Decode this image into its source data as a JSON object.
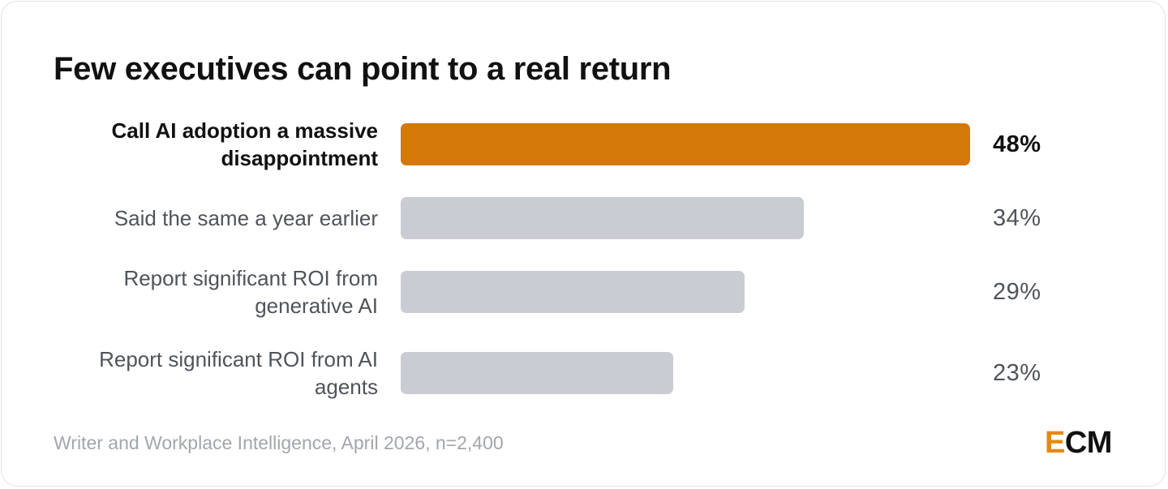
{
  "title": "Few executives can point to a real return",
  "source": "Writer and Workplace Intelligence, April 2026, n=2,400",
  "logo": {
    "first_letter": "E",
    "rest": "CM"
  },
  "colors": {
    "highlight": "#d4780a",
    "bar": "#c9ccd2",
    "logo_accent": "#e8880c"
  },
  "chart_data": {
    "type": "bar",
    "orientation": "horizontal",
    "categories": [
      "Call AI adoption a massive disappointment",
      "Said the same a year earlier",
      "Report significant ROI from generative AI",
      "Report significant ROI from AI agents"
    ],
    "values": [
      48,
      34,
      29,
      23
    ],
    "value_labels": [
      "48%",
      "34%",
      "29%",
      "23%"
    ],
    "highlighted_index": 0,
    "unit": "%",
    "xlim": [
      0,
      48
    ],
    "grid": false,
    "legend": "none"
  }
}
